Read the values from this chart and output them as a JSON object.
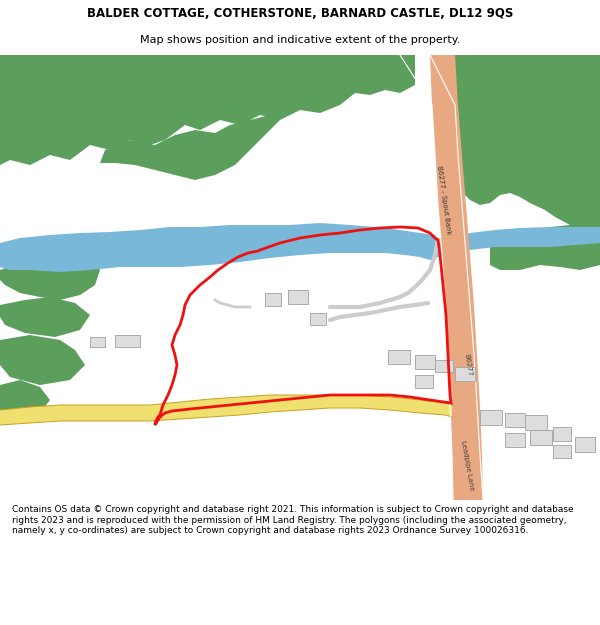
{
  "title_line1": "BALDER COTTAGE, COTHERSTONE, BARNARD CASTLE, DL12 9QS",
  "title_line2": "Map shows position and indicative extent of the property.",
  "footer_text": "Contains OS data © Crown copyright and database right 2021. This information is subject to Crown copyright and database rights 2023 and is reproduced with the permission of HM Land Registry. The polygons (including the associated geometry, namely x, y co-ordinates) are subject to Crown copyright and database rights 2023 Ordnance Survey 100026316.",
  "bg_color": "#ffffff",
  "map_bg": "#f7f7f7",
  "green_color": "#5c9e5c",
  "blue_color": "#7ab8d9",
  "road_main_color": "#e8a882",
  "road_minor_color": "#f0e070",
  "road_outline_color": "#d4b84a",
  "red_outline_color": "#ee1111",
  "building_color": "#dddddd",
  "building_outline": "#aaaaaa",
  "gray_road_color": "#cccccc",
  "white_color": "#ffffff"
}
